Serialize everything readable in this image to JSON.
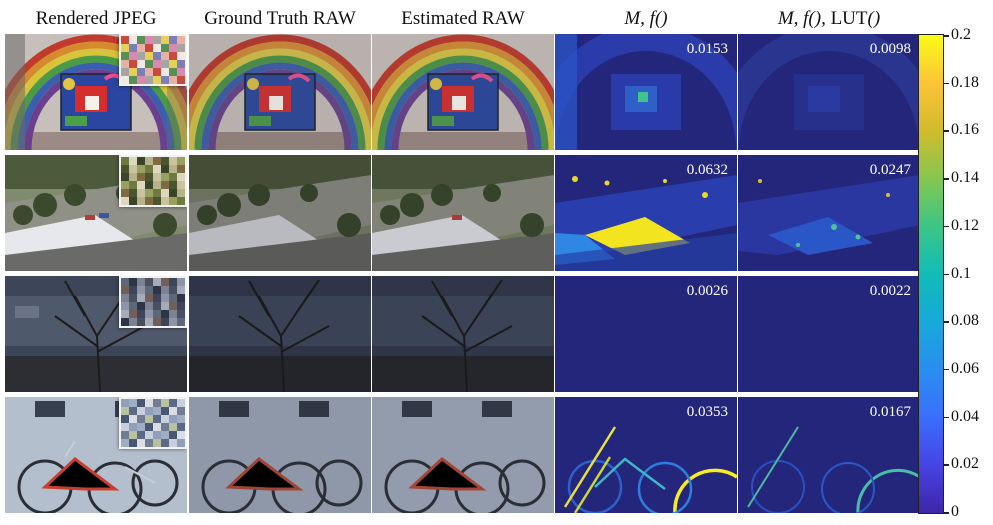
{
  "column_headers": [
    "Rendered JPEG",
    "Ground Truth RAW",
    "Estimated RAW"
  ],
  "error_headers": [
    {
      "italic": "M, f()",
      "roman": "",
      "italic_tail": ""
    },
    {
      "italic": "M, f(),",
      "roman": " LUT",
      "italic_tail": "()"
    }
  ],
  "rows": [
    {
      "scene": "rainbow-mural",
      "errors": [
        "0.0153",
        "0.0098"
      ]
    },
    {
      "scene": "parking-lot",
      "errors": [
        "0.0632",
        "0.0247"
      ]
    },
    {
      "scene": "bare-tree",
      "errors": [
        "0.0026",
        "0.0022"
      ]
    },
    {
      "scene": "bicycles",
      "errors": [
        "0.0353",
        "0.0167"
      ]
    }
  ],
  "colorbar": {
    "ticks": [
      "0.2",
      "0.18",
      "0.16",
      "0.14",
      "0.12",
      "0.1",
      "0.08",
      "0.06",
      "0.04",
      "0.02",
      "0"
    ],
    "colormap": "parula"
  },
  "colors": {
    "err_background": "#23267a",
    "err_high": "#f9fb15",
    "err_mid": "#18a9db"
  }
}
